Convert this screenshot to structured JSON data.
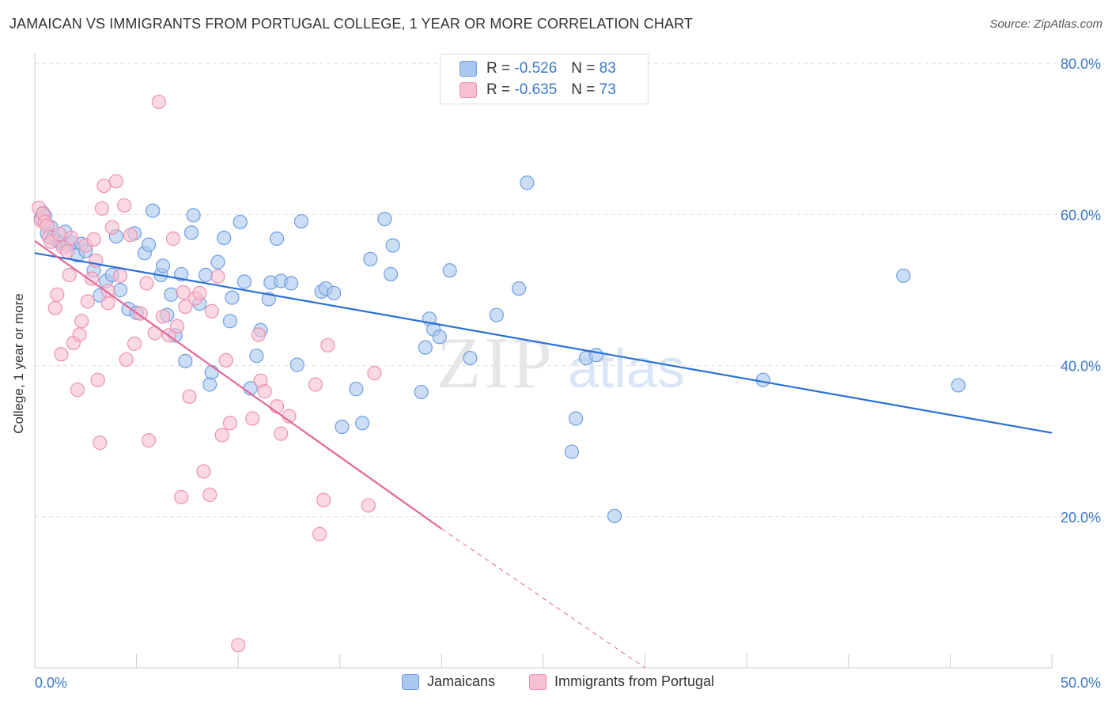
{
  "title": "JAMAICAN VS IMMIGRANTS FROM PORTUGAL COLLEGE, 1 YEAR OR MORE CORRELATION CHART",
  "source": "Source: ZipAtlas.com",
  "watermark": {
    "zip": "ZIP",
    "atlas": "atlas"
  },
  "legend": {
    "r_label": "R =",
    "n_label": "N =",
    "series": [
      {
        "r": "-0.526",
        "n": "83"
      },
      {
        "r": "-0.635",
        "n": "73"
      }
    ]
  },
  "colors": {
    "blue_fill": "#aac8ef",
    "blue_stroke": "#6f9ee0",
    "blue_line": "#2970d6",
    "pink_fill": "#f6c0d1",
    "pink_stroke": "#ec92b0",
    "pink_line": "#e2679a",
    "tick_text": "#3b78c9",
    "grid": "#dddddd"
  },
  "chart_data": {
    "type": "scatter",
    "title": "JAMAICAN VS IMMIGRANTS FROM PORTUGAL COLLEGE, 1 YEAR OR MORE CORRELATION CHART",
    "xlabel": "",
    "ylabel": "College, 1 year or more",
    "xlim": [
      0,
      50
    ],
    "ylim": [
      0,
      82
    ],
    "x_tick_labels": [
      "0.0%",
      "50.0%"
    ],
    "y_ticks": [
      20,
      40,
      60,
      80
    ],
    "y_tick_labels": [
      "20.0%",
      "40.0%",
      "60.0%",
      "80.0%"
    ],
    "grid": true,
    "legend_position": "top-center",
    "series": [
      {
        "name": "Jamaicans",
        "r": -0.526,
        "n": 83,
        "trend": {
          "x": [
            0,
            50
          ],
          "y": [
            54.9,
            31.1
          ],
          "dashed_from": null
        },
        "points": [
          [
            0.3,
            59.5
          ],
          [
            0.4,
            60.2
          ],
          [
            0.5,
            59.8
          ],
          [
            0.6,
            57.5
          ],
          [
            0.8,
            58.3
          ],
          [
            0.9,
            56.9
          ],
          [
            1.1,
            56.5
          ],
          [
            1.3,
            56.2
          ],
          [
            1.5,
            57.7
          ],
          [
            1.6,
            56.0
          ],
          [
            1.8,
            56.3
          ],
          [
            2.1,
            54.6
          ],
          [
            2.3,
            56.1
          ],
          [
            2.5,
            55.2
          ],
          [
            2.9,
            52.6
          ],
          [
            3.2,
            49.3
          ],
          [
            3.5,
            51.2
          ],
          [
            3.8,
            52.0
          ],
          [
            4.0,
            57.1
          ],
          [
            4.2,
            50.0
          ],
          [
            4.6,
            47.5
          ],
          [
            4.9,
            57.5
          ],
          [
            5.0,
            47.0
          ],
          [
            5.4,
            54.9
          ],
          [
            5.6,
            56.0
          ],
          [
            5.8,
            60.5
          ],
          [
            6.2,
            52.0
          ],
          [
            6.3,
            53.2
          ],
          [
            6.5,
            46.7
          ],
          [
            6.7,
            49.4
          ],
          [
            6.9,
            44.0
          ],
          [
            7.2,
            52.1
          ],
          [
            7.4,
            40.6
          ],
          [
            7.7,
            57.6
          ],
          [
            7.8,
            59.9
          ],
          [
            8.1,
            48.2
          ],
          [
            8.4,
            52.0
          ],
          [
            8.6,
            37.5
          ],
          [
            8.7,
            39.1
          ],
          [
            9.0,
            53.7
          ],
          [
            9.3,
            56.9
          ],
          [
            9.6,
            45.9
          ],
          [
            9.7,
            49.0
          ],
          [
            10.1,
            59.0
          ],
          [
            10.3,
            51.1
          ],
          [
            10.6,
            37.0
          ],
          [
            10.9,
            41.3
          ],
          [
            11.1,
            44.7
          ],
          [
            11.5,
            48.8
          ],
          [
            11.6,
            51.0
          ],
          [
            11.9,
            56.8
          ],
          [
            12.1,
            51.2
          ],
          [
            12.6,
            50.9
          ],
          [
            12.9,
            40.1
          ],
          [
            13.1,
            59.1
          ],
          [
            14.1,
            49.8
          ],
          [
            14.3,
            50.2
          ],
          [
            14.7,
            49.6
          ],
          [
            15.1,
            31.9
          ],
          [
            15.8,
            36.9
          ],
          [
            16.1,
            32.4
          ],
          [
            16.5,
            54.1
          ],
          [
            17.2,
            59.4
          ],
          [
            17.5,
            52.1
          ],
          [
            17.6,
            55.9
          ],
          [
            19.0,
            36.5
          ],
          [
            19.2,
            42.4
          ],
          [
            19.4,
            46.2
          ],
          [
            19.6,
            44.8
          ],
          [
            19.9,
            43.8
          ],
          [
            20.4,
            52.6
          ],
          [
            21.4,
            41.0
          ],
          [
            22.7,
            46.7
          ],
          [
            23.8,
            50.2
          ],
          [
            24.2,
            64.2
          ],
          [
            26.4,
            28.6
          ],
          [
            26.6,
            33.0
          ],
          [
            27.1,
            41.0
          ],
          [
            27.6,
            41.4
          ],
          [
            28.5,
            20.1
          ],
          [
            35.8,
            38.1
          ],
          [
            42.7,
            51.9
          ],
          [
            45.4,
            37.4
          ]
        ]
      },
      {
        "name": "Immigrants from Portugal",
        "r": -0.635,
        "n": 73,
        "trend": {
          "x": [
            0,
            20.0
          ],
          "y": [
            56.5,
            18.4
          ],
          "dashed_to": [
            30,
            0
          ]
        },
        "points": [
          [
            0.2,
            60.9
          ],
          [
            0.3,
            59.2
          ],
          [
            0.4,
            60.1
          ],
          [
            0.5,
            59.0
          ],
          [
            0.6,
            58.5
          ],
          [
            0.7,
            57.0
          ],
          [
            0.8,
            56.4
          ],
          [
            1.0,
            47.6
          ],
          [
            1.1,
            49.4
          ],
          [
            1.2,
            57.4
          ],
          [
            1.3,
            41.5
          ],
          [
            1.4,
            55.6
          ],
          [
            1.6,
            55.1
          ],
          [
            1.7,
            52.0
          ],
          [
            1.8,
            56.9
          ],
          [
            1.9,
            43.0
          ],
          [
            2.1,
            36.8
          ],
          [
            2.2,
            44.1
          ],
          [
            2.3,
            45.9
          ],
          [
            2.5,
            55.9
          ],
          [
            2.6,
            48.5
          ],
          [
            2.8,
            51.5
          ],
          [
            2.9,
            56.7
          ],
          [
            3.0,
            53.9
          ],
          [
            3.1,
            38.1
          ],
          [
            3.2,
            29.8
          ],
          [
            3.3,
            60.8
          ],
          [
            3.4,
            63.8
          ],
          [
            3.6,
            48.3
          ],
          [
            3.8,
            58.3
          ],
          [
            4.0,
            64.4
          ],
          [
            4.2,
            51.9
          ],
          [
            4.4,
            61.2
          ],
          [
            4.5,
            40.8
          ],
          [
            4.7,
            57.3
          ],
          [
            4.9,
            42.9
          ],
          [
            5.2,
            46.9
          ],
          [
            5.5,
            50.9
          ],
          [
            5.6,
            30.1
          ],
          [
            6.1,
            74.9
          ],
          [
            6.3,
            46.5
          ],
          [
            6.6,
            44.0
          ],
          [
            6.8,
            56.8
          ],
          [
            7.0,
            45.2
          ],
          [
            7.2,
            22.6
          ],
          [
            7.4,
            47.8
          ],
          [
            7.6,
            35.9
          ],
          [
            7.9,
            48.9
          ],
          [
            8.1,
            49.6
          ],
          [
            8.3,
            26.0
          ],
          [
            8.6,
            22.9
          ],
          [
            8.7,
            47.2
          ],
          [
            9.0,
            51.8
          ],
          [
            9.2,
            30.8
          ],
          [
            9.4,
            40.7
          ],
          [
            9.6,
            32.4
          ],
          [
            10.7,
            33.0
          ],
          [
            11.0,
            44.1
          ],
          [
            11.1,
            38.0
          ],
          [
            11.3,
            36.6
          ],
          [
            11.9,
            34.6
          ],
          [
            12.1,
            31.0
          ],
          [
            12.5,
            33.3
          ],
          [
            13.8,
            37.5
          ],
          [
            14.0,
            17.7
          ],
          [
            14.2,
            22.2
          ],
          [
            14.4,
            42.7
          ],
          [
            16.4,
            21.5
          ],
          [
            16.7,
            39.0
          ],
          [
            10.0,
            3.0
          ],
          [
            7.3,
            49.7
          ],
          [
            5.9,
            44.3
          ],
          [
            3.6,
            49.9
          ]
        ]
      }
    ]
  }
}
